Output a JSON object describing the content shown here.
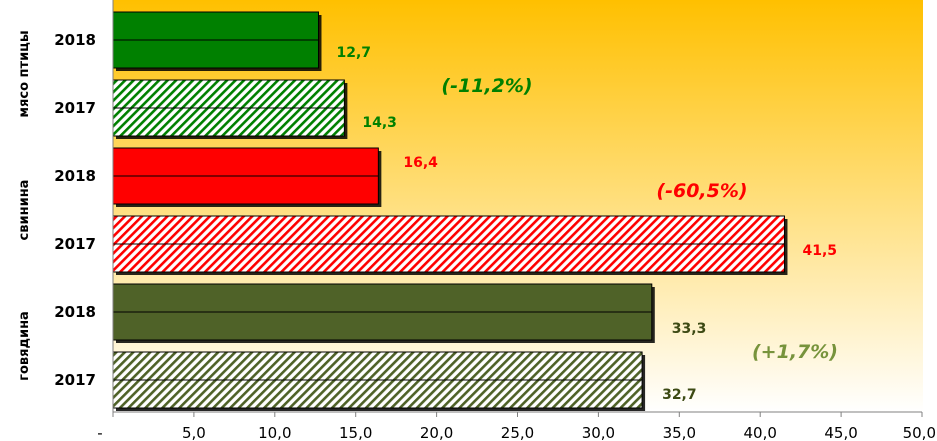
{
  "chart_data": {
    "type": "bar",
    "orientation": "horizontal",
    "title": "",
    "xlabel": "",
    "ylabel": "",
    "xlim": [
      0,
      50
    ],
    "x_ticks": [
      "-",
      "5,0",
      "10,0",
      "15,0",
      "20,0",
      "25,0",
      "30,0",
      "35,0",
      "40,0",
      "45,0",
      "50,0"
    ],
    "grid": false,
    "background": [
      "#ffc000",
      "#ffffff"
    ],
    "groups": [
      {
        "name": "мясо птицы",
        "change": "(-11,2%)",
        "color": "#008000",
        "bars": [
          {
            "year": "2018",
            "value": 12.7,
            "label": "12,7",
            "pattern": "solid"
          },
          {
            "year": "2017",
            "value": 14.3,
            "label": "14,3",
            "pattern": "hatched"
          }
        ]
      },
      {
        "name": "свинина",
        "change": "(-60,5%)",
        "color": "#ff0000",
        "bars": [
          {
            "year": "2018",
            "value": 16.4,
            "label": "16,4",
            "pattern": "solid"
          },
          {
            "year": "2017",
            "value": 41.5,
            "label": "41,5",
            "pattern": "hatched"
          }
        ]
      },
      {
        "name": "говядина",
        "change": "(+1,7%)",
        "color": "#4f6228",
        "label_color": "#3d4a14",
        "change_color": "#77933c",
        "bars": [
          {
            "year": "2018",
            "value": 33.3,
            "label": "33,3",
            "pattern": "solid"
          },
          {
            "year": "2017",
            "value": 32.7,
            "label": "32,7",
            "pattern": "hatched"
          }
        ]
      }
    ]
  }
}
